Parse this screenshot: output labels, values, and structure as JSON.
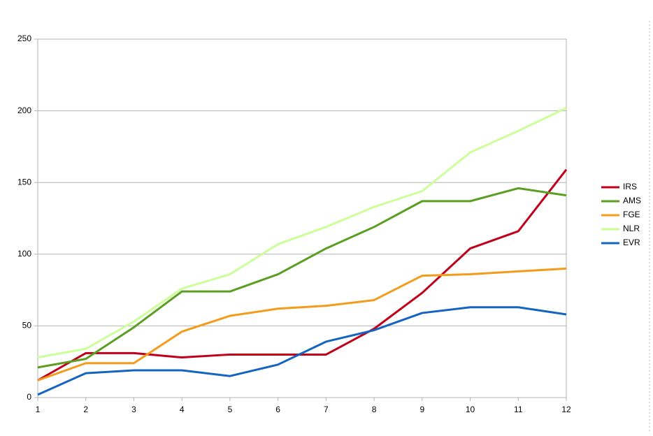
{
  "chart_data": {
    "type": "line",
    "x": [
      1,
      2,
      3,
      4,
      5,
      6,
      7,
      8,
      9,
      10,
      11,
      12
    ],
    "xlim": [
      1,
      12
    ],
    "xticks": [
      1,
      2,
      3,
      4,
      5,
      6,
      7,
      8,
      9,
      10,
      11,
      12
    ],
    "ylim": [
      0,
      250
    ],
    "yticks": [
      0,
      50,
      100,
      150,
      200,
      250
    ],
    "grid": true,
    "legend": "right",
    "series": [
      {
        "name": "IRS",
        "color": "#c0001a",
        "values": [
          12,
          31,
          31,
          28,
          30,
          30,
          30,
          48,
          73,
          104,
          116,
          159
        ]
      },
      {
        "name": "AMS",
        "color": "#5a9e22",
        "values": [
          21,
          27,
          49,
          74,
          74,
          86,
          104,
          119,
          137,
          137,
          146,
          141
        ]
      },
      {
        "name": "FGE",
        "color": "#f39c1c",
        "values": [
          12,
          24,
          24,
          46,
          57,
          62,
          64,
          68,
          85,
          86,
          88,
          90
        ]
      },
      {
        "name": "NLR",
        "color": "#ccff99",
        "values": [
          28,
          34,
          53,
          76,
          86,
          107,
          119,
          133,
          144,
          171,
          186,
          202
        ]
      },
      {
        "name": "EVR",
        "color": "#1565c0",
        "values": [
          2,
          17,
          19,
          19,
          15,
          23,
          39,
          47,
          59,
          63,
          63,
          58
        ]
      }
    ]
  }
}
